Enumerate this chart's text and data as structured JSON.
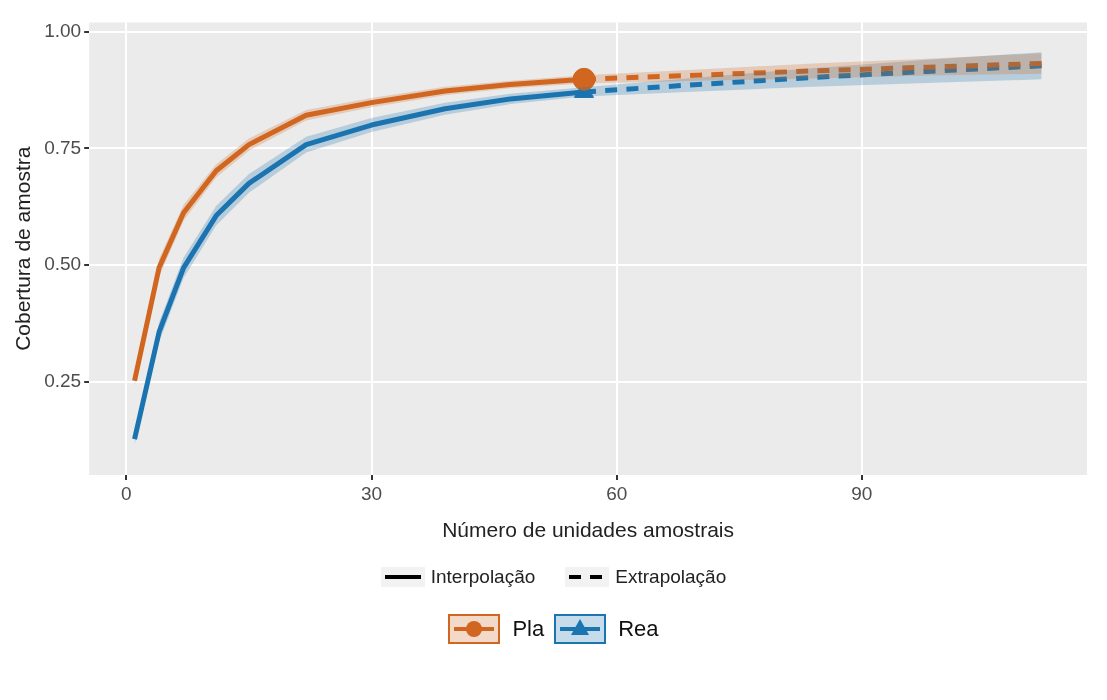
{
  "chart_data": {
    "type": "line",
    "xlabel": "Número de unidades amostrais",
    "ylabel": "Cobertura de amostra",
    "xlim": [
      -4.55,
      117.55
    ],
    "xticks": [
      0,
      30,
      60,
      90
    ],
    "ylim": [
      0.05,
      1.02
    ],
    "yticks": [
      0.25,
      {
        "value": 0.5,
        "label": "0.50"
      },
      0.75,
      {
        "value": 1,
        "label": "1.00"
      }
    ],
    "grid": true,
    "legend": "bottom",
    "annotations": [
      "Interpolação",
      "Extrapolação"
    ],
    "series": [
      {
        "name": "Pla",
        "color": "#d0661f",
        "line_style": "solid",
        "x": [
          1,
          4,
          7,
          11,
          15,
          22,
          30,
          39,
          47,
          56
        ],
        "values": [
          0.252,
          0.494,
          0.612,
          0.702,
          0.758,
          0.821,
          0.848,
          0.873,
          0.887,
          0.898
        ],
        "lower": [
          0.24,
          0.475,
          0.595,
          0.688,
          0.745,
          0.81,
          0.838,
          0.864,
          0.879,
          0.889
        ],
        "upper": [
          0.264,
          0.513,
          0.629,
          0.716,
          0.771,
          0.832,
          0.858,
          0.882,
          0.895,
          0.907
        ]
      },
      {
        "color": "#d0661f",
        "line_style": "dashed",
        "x": [
          56,
          70,
          84,
          98,
          112
        ],
        "values": [
          0.898,
          0.907,
          0.916,
          0.924,
          0.932
        ],
        "lower": [
          0.889,
          0.895,
          0.9,
          0.906,
          0.91
        ],
        "upper": [
          0.907,
          0.919,
          0.932,
          0.942,
          0.954
        ]
      },
      {
        "name": "Rea",
        "color": "#1b75b0",
        "line_style": "solid",
        "x": [
          1,
          4,
          7,
          11,
          15,
          22,
          30,
          39,
          47,
          56
        ],
        "values": [
          0.127,
          0.356,
          0.494,
          0.606,
          0.675,
          0.758,
          0.8,
          0.835,
          0.856,
          0.871
        ],
        "lower": [
          0.115,
          0.335,
          0.472,
          0.585,
          0.655,
          0.741,
          0.785,
          0.822,
          0.845,
          0.861
        ],
        "upper": [
          0.139,
          0.377,
          0.516,
          0.627,
          0.695,
          0.775,
          0.815,
          0.848,
          0.867,
          0.881
        ]
      },
      {
        "color": "#1b75b0",
        "line_style": "dashed",
        "x": [
          56,
          70,
          84,
          98,
          112
        ],
        "values": [
          0.871,
          0.887,
          0.902,
          0.915,
          0.927
        ],
        "lower": [
          0.861,
          0.872,
          0.882,
          0.89,
          0.898
        ],
        "upper": [
          0.881,
          0.902,
          0.922,
          0.94,
          0.956
        ]
      },
      {
        "type": "scatter",
        "color": "#d0661f",
        "marker": "circle",
        "x": [
          56
        ],
        "values": [
          0.898
        ]
      },
      {
        "type": "scatter",
        "color": "#1b75b0",
        "marker": "triangle",
        "x": [
          56
        ],
        "values": [
          0.871
        ]
      }
    ]
  }
}
